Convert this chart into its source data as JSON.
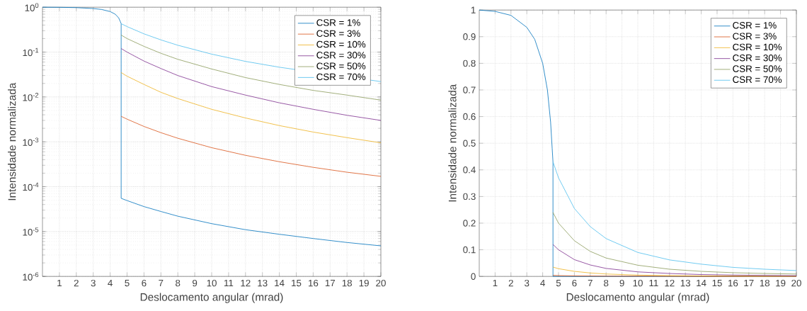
{
  "chart_data": [
    {
      "type": "line",
      "xlabel": "Deslocamento angular (mrad)",
      "ylabel": "Intensidade normalizada",
      "log": "y",
      "grid": true,
      "legend": "top right",
      "xlim": [
        0,
        20
      ],
      "xticks": [
        1,
        2,
        3,
        4,
        5,
        6,
        7,
        8,
        9,
        10,
        11,
        12,
        13,
        14,
        15,
        16,
        17,
        18,
        19,
        20
      ],
      "ylim": [
        1e-06,
        1
      ],
      "yticks": [
        {
          "value": 1e-06,
          "label": "10$^{-6}$"
        },
        {
          "value": 1e-05,
          "label": "10$^{-5}$"
        },
        {
          "value": 0.0001,
          "label": "10$^{-4}$"
        },
        {
          "value": 0.001,
          "label": "10$^{-3}$"
        },
        {
          "value": 0.01,
          "label": "10$^{-2}$"
        },
        {
          "value": 0.1,
          "label": "10$^{-1}$"
        },
        {
          "value": 1,
          "label": "10$^{0}$"
        }
      ],
      "series": [
        {
          "name": "CSR = 1%",
          "color": "#0072bd",
          "x": [
            0,
            1,
            2,
            3,
            3.5,
            4,
            4.3,
            4.5,
            4.6,
            4.65,
            4.65,
            5,
            6,
            7,
            8,
            10,
            12,
            14,
            16,
            18,
            20
          ],
          "values": [
            1,
            0.995,
            0.98,
            0.935,
            0.89,
            0.8,
            0.7,
            0.58,
            0.48,
            0.43,
            5.5e-05,
            4.9e-05,
            3.6e-05,
            2.8e-05,
            2.2e-05,
            1.5e-05,
            1.1e-05,
            8.7e-06,
            7e-06,
            5.7e-06,
            4.8e-06
          ]
        },
        {
          "name": "CSR = 3%",
          "color": "#d95319",
          "x": [
            4.65,
            5,
            6,
            7,
            8,
            10,
            12,
            14,
            16,
            18,
            20
          ],
          "values": [
            0.0037,
            0.0032,
            0.0022,
            0.0016,
            0.0012,
            0.00074,
            0.0005,
            0.00036,
            0.00027,
            0.00021,
            0.00017
          ]
        },
        {
          "name": "CSR = 10%",
          "color": "#edb120",
          "x": [
            4.65,
            5,
            6,
            7,
            8,
            10,
            12,
            14,
            16,
            18,
            20
          ],
          "values": [
            0.035,
            0.029,
            0.019,
            0.0127,
            0.0092,
            0.0053,
            0.0034,
            0.0023,
            0.00165,
            0.00124,
            0.00095
          ]
        },
        {
          "name": "CSR = 30%",
          "color": "#7e2f8e",
          "x": [
            4.65,
            5,
            6,
            7,
            8,
            10,
            12,
            14,
            16,
            18,
            20
          ],
          "values": [
            0.12,
            0.1,
            0.063,
            0.043,
            0.03,
            0.017,
            0.011,
            0.0074,
            0.0053,
            0.0039,
            0.003
          ]
        },
        {
          "name": "CSR = 50%",
          "color": "#8a9a5b",
          "x": [
            4.65,
            5,
            6,
            7,
            8,
            10,
            12,
            14,
            16,
            18,
            20
          ],
          "values": [
            0.24,
            0.2,
            0.134,
            0.094,
            0.069,
            0.042,
            0.027,
            0.019,
            0.014,
            0.011,
            0.0085
          ]
        },
        {
          "name": "CSR = 70%",
          "color": "#4dbeee",
          "x": [
            4.65,
            5,
            6,
            7,
            8,
            10,
            12,
            14,
            20
          ],
          "values": [
            0.43,
            0.37,
            0.255,
            0.187,
            0.142,
            0.09,
            0.062,
            0.046,
            0.022
          ]
        }
      ]
    },
    {
      "type": "line",
      "xlabel": "Deslocamento angular (mrad)",
      "ylabel": "Intensidade normalizada",
      "grid": true,
      "legend": "top right",
      "xlim": [
        0,
        20
      ],
      "xticks": [
        1,
        2,
        3,
        4,
        5,
        6,
        7,
        8,
        9,
        10,
        11,
        12,
        13,
        14,
        15,
        16,
        17,
        18,
        19,
        20
      ],
      "ylim": [
        0,
        1
      ],
      "yticks": [
        0,
        0.1,
        0.2,
        0.3,
        0.4,
        0.5,
        0.6,
        0.7,
        0.8,
        0.9,
        1
      ],
      "series": [
        {
          "name": "CSR = 1%",
          "color": "#0072bd",
          "x": [
            0,
            1,
            2,
            3,
            3.5,
            4,
            4.3,
            4.5,
            4.6,
            4.65,
            4.65,
            20
          ],
          "values": [
            1,
            0.995,
            0.98,
            0.935,
            0.89,
            0.8,
            0.7,
            0.58,
            0.48,
            0.43,
            0,
            0
          ]
        },
        {
          "name": "CSR = 3%",
          "color": "#d95319",
          "x": [
            4.65,
            5,
            6,
            8,
            10,
            15,
            20
          ],
          "values": [
            0.004,
            0.003,
            0.002,
            0.001,
            0.001,
            0,
            0
          ]
        },
        {
          "name": "CSR = 10%",
          "color": "#edb120",
          "x": [
            4.65,
            5,
            6,
            7,
            8,
            10,
            12,
            14,
            16,
            18,
            20
          ],
          "values": [
            0.035,
            0.029,
            0.019,
            0.013,
            0.009,
            0.005,
            0.003,
            0.002,
            0.002,
            0.001,
            0.001
          ]
        },
        {
          "name": "CSR = 30%",
          "color": "#7e2f8e",
          "x": [
            4.65,
            5,
            6,
            7,
            8,
            10,
            12,
            14,
            16,
            18,
            20
          ],
          "values": [
            0.12,
            0.1,
            0.063,
            0.043,
            0.03,
            0.017,
            0.011,
            0.007,
            0.005,
            0.004,
            0.003
          ]
        },
        {
          "name": "CSR = 50%",
          "color": "#8a9a5b",
          "x": [
            4.65,
            5,
            6,
            7,
            8,
            10,
            12,
            14,
            16,
            18,
            20
          ],
          "values": [
            0.24,
            0.2,
            0.134,
            0.094,
            0.069,
            0.042,
            0.027,
            0.019,
            0.014,
            0.011,
            0.009
          ]
        },
        {
          "name": "CSR = 70%",
          "color": "#4dbeee",
          "x": [
            4.65,
            5,
            6,
            7,
            8,
            10,
            12,
            14,
            16,
            18,
            20
          ],
          "values": [
            0.43,
            0.37,
            0.255,
            0.187,
            0.142,
            0.09,
            0.062,
            0.046,
            0.034,
            0.027,
            0.022
          ]
        }
      ]
    }
  ]
}
